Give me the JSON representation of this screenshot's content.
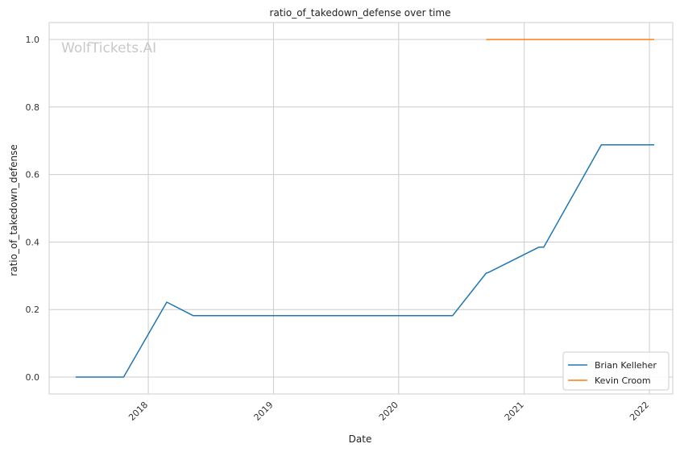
{
  "chart_data": {
    "type": "line",
    "title": "ratio_of_takedown_defense over time",
    "xlabel": "Date",
    "ylabel": "ratio_of_takedown_defense",
    "watermark": "WolfTickets.AI",
    "x_ticks": [
      "2018",
      "2019",
      "2020",
      "2021",
      "2022"
    ],
    "y_ticks": [
      "0.0",
      "0.2",
      "0.4",
      "0.6",
      "0.8",
      "1.0"
    ],
    "xlim": [
      "2017-03-18",
      "2022-03-10"
    ],
    "ylim": [
      -0.05,
      1.05
    ],
    "grid": true,
    "legend_position": "lower-right",
    "series": [
      {
        "name": "Brian Kelleher",
        "color": "#1f77b4",
        "points": [
          [
            "2017-06-03",
            0.0
          ],
          [
            "2017-10-21",
            0.0
          ],
          [
            "2018-02-24",
            0.222
          ],
          [
            "2018-05-12",
            0.182
          ],
          [
            "2020-06-06",
            0.182
          ],
          [
            "2020-09-12",
            0.308
          ],
          [
            "2020-09-19",
            0.31
          ],
          [
            "2021-02-13",
            0.385
          ],
          [
            "2021-02-27",
            0.385
          ],
          [
            "2021-08-14",
            0.688
          ],
          [
            "2022-01-15",
            0.688
          ]
        ]
      },
      {
        "name": "Kevin Croom",
        "color": "#ff7f0e",
        "points": [
          [
            "2020-09-12",
            1.0
          ],
          [
            "2022-01-15",
            1.0
          ]
        ]
      }
    ]
  }
}
